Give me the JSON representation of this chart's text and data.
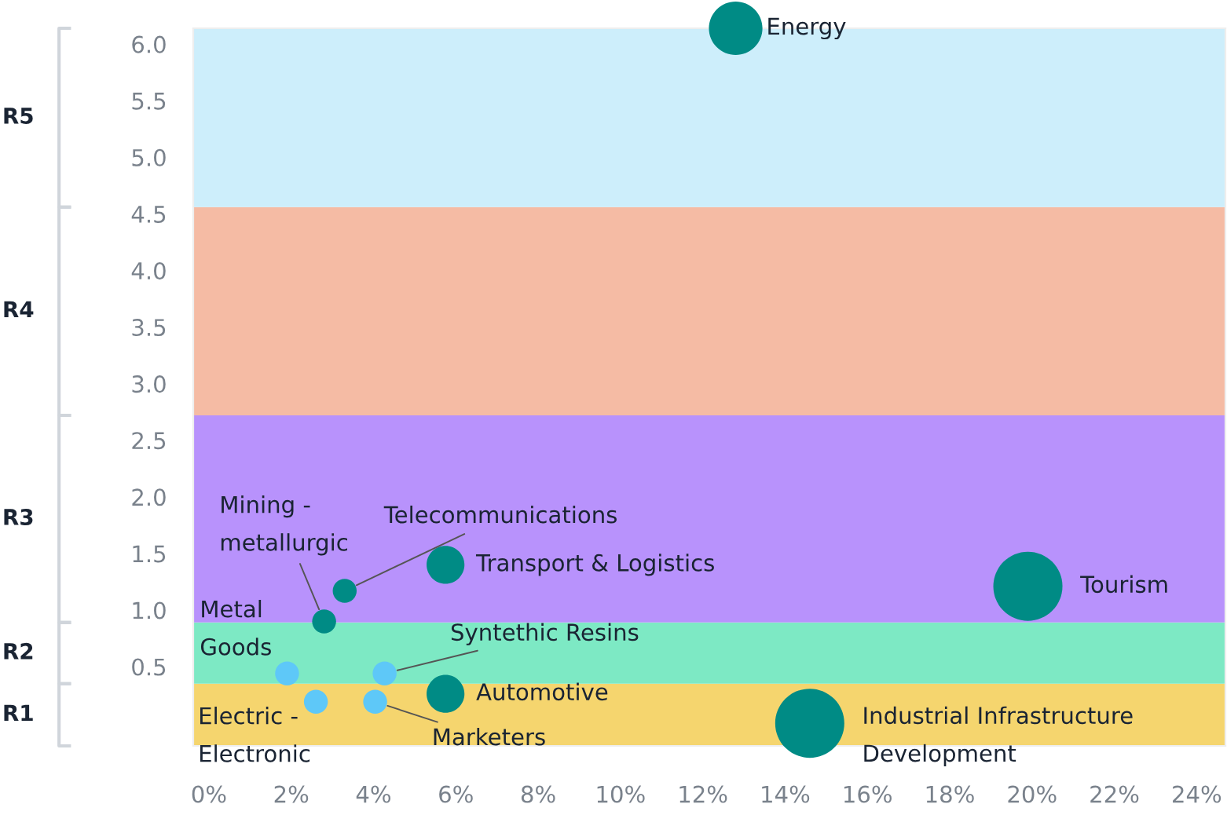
{
  "chart_data": {
    "type": "bubble",
    "series": [
      {
        "color": "#008b85",
        "x": [
          12.8,
          19.9,
          14.6,
          5.75,
          5.75,
          3.3,
          2.8
        ],
        "values": [
          6.14,
          1.21,
          0.0,
          1.4,
          0.26,
          1.17,
          0.9
        ],
        "sizes": [
          0.6,
          1,
          1,
          0.3,
          0.3,
          0.12,
          0.12
        ]
      },
      {
        "color": "#5ec8f8",
        "x": [
          1.9,
          4.27,
          2.6,
          4.04
        ],
        "values": [
          0.44,
          0.44,
          0.19,
          0.19
        ],
        "sizes": [
          0.12,
          0.12,
          0.12,
          0.12
        ]
      }
    ],
    "annotations": [
      {
        "text": "Energy",
        "x": 12.8,
        "y": 6.14
      },
      {
        "text": "Tourism",
        "x": 19.9,
        "y": 1.21
      },
      {
        "text": "Industrial Infrastructure\nDevelopment",
        "x": 14.6,
        "y": 0.0
      },
      {
        "text": "Transport & Logistics",
        "x": 5.75,
        "y": 1.4
      },
      {
        "text": "Automotive",
        "x": 5.75,
        "y": 0.26
      },
      {
        "text": "Telecommunications",
        "x": 3.3,
        "y": 1.17
      },
      {
        "text": "Mining -\nmetallurgic",
        "x": 2.8,
        "y": 0.9
      },
      {
        "text": "Metal\nGoods",
        "x": 1.9,
        "y": 0.44
      },
      {
        "text": "Syntethic Resins",
        "x": 4.27,
        "y": 0.44
      },
      {
        "text": "Electric -\nElectronic",
        "x": 2.6,
        "y": 0.19
      },
      {
        "text": "Marketers",
        "x": 4.04,
        "y": 0.19
      },
      "R1",
      "R2",
      "R3",
      "R4",
      "R5"
    ],
    "bands": [
      {
        "axis": "y",
        "from": -0.2,
        "to": 0.35,
        "color": "#f5d56e"
      },
      {
        "axis": "y",
        "from": 0.35,
        "to": 0.89,
        "color": "#7de9c4"
      },
      {
        "axis": "y",
        "from": 0.89,
        "to": 2.72,
        "color": "#b892fc"
      },
      {
        "axis": "y",
        "from": 2.72,
        "to": 4.56,
        "color": "#f5bba4"
      },
      {
        "axis": "y",
        "from": 4.56,
        "to": 6.14,
        "color": "#cdeefb"
      }
    ],
    "xlim": [
      -0.38,
      24.7
    ],
    "ylim": [
      -0.2,
      6.14
    ],
    "xticks": [
      {
        "value": 0,
        "label": "0%"
      },
      {
        "value": 2,
        "label": "2%"
      },
      {
        "value": 4,
        "label": "4%"
      },
      {
        "value": 6,
        "label": "6%"
      },
      {
        "value": 8,
        "label": "8%"
      },
      {
        "value": 10,
        "label": "10%"
      },
      {
        "value": 12,
        "label": "12%"
      },
      {
        "value": 14,
        "label": "14%"
      },
      {
        "value": 16,
        "label": "16%"
      },
      {
        "value": 18,
        "label": "18%"
      },
      {
        "value": 20,
        "label": "20%"
      },
      {
        "value": 22,
        "label": "22%"
      },
      {
        "value": 24,
        "label": "24%"
      }
    ],
    "yticks": [
      0.5,
      {
        "value": 1,
        "label": "1.0"
      },
      1.5,
      {
        "value": 2,
        "label": "2.0"
      },
      2.5,
      {
        "value": 3,
        "label": "3.0"
      },
      3.5,
      {
        "value": 4,
        "label": "4.0"
      },
      4.5,
      {
        "value": 5,
        "label": "5.0"
      },
      5.5,
      {
        "value": 6,
        "label": "6.0"
      }
    ],
    "grid": false,
    "legend": false
  }
}
